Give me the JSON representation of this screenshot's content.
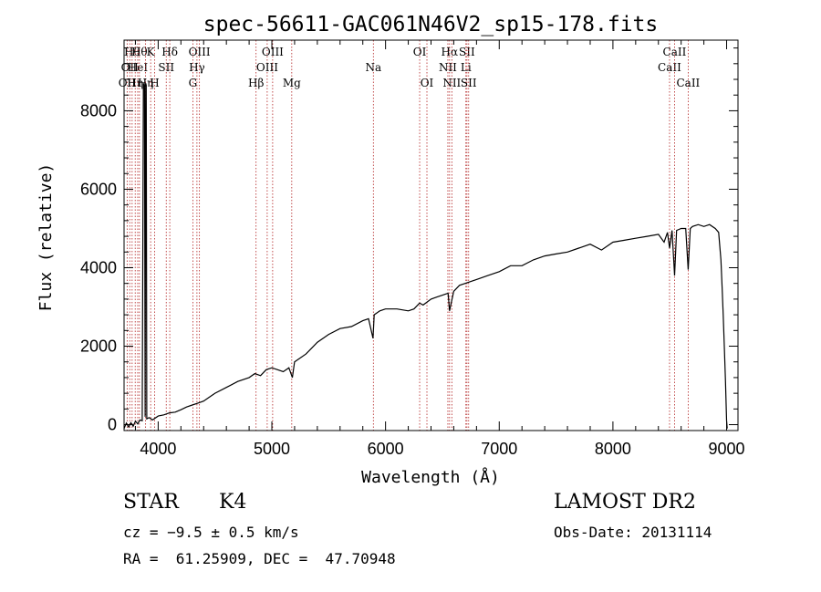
{
  "chart_data": {
    "type": "line",
    "title": "spec-56611-GAC061N46V2_sp15-178.fits",
    "xlabel": "Wavelength (Å)",
    "ylabel": "Flux (relative)",
    "xlim": [
      3700,
      9100
    ],
    "ylim": [
      -150,
      9800
    ],
    "x_ticks": [
      4000,
      5000,
      6000,
      7000,
      8000,
      9000
    ],
    "y_ticks": [
      0,
      2000,
      4000,
      6000,
      8000
    ],
    "x_minor_step": 200,
    "y_minor_step": 400,
    "grid": false,
    "series": [
      {
        "color": "#000000",
        "x": [
          3700,
          3720,
          3740,
          3760,
          3780,
          3800,
          3820,
          3840,
          3860,
          3870,
          3880,
          3885,
          3890,
          3895,
          3900,
          3920,
          3950,
          4000,
          4050,
          4100,
          4150,
          4200,
          4250,
          4300,
          4350,
          4400,
          4450,
          4500,
          4600,
          4700,
          4800,
          4850,
          4900,
          4950,
          5000,
          5050,
          5100,
          5150,
          5180,
          5200,
          5300,
          5400,
          5500,
          5600,
          5700,
          5800,
          5850,
          5890,
          5900,
          5950,
          6000,
          6100,
          6200,
          6250,
          6300,
          6330,
          6400,
          6450,
          6500,
          6550,
          6563,
          6600,
          6650,
          6700,
          6800,
          6900,
          7000,
          7100,
          7200,
          7300,
          7400,
          7500,
          7600,
          7700,
          7800,
          7900,
          8000,
          8100,
          8200,
          8300,
          8400,
          8450,
          8480,
          8498,
          8520,
          8542,
          8560,
          8600,
          8640,
          8662,
          8680,
          8700,
          8750,
          8800,
          8850,
          8900,
          8930,
          8950,
          8960,
          8970,
          8980,
          8990,
          9000,
          9005
        ],
        "y": [
          -100,
          40,
          -60,
          50,
          -40,
          90,
          20,
          120,
          100,
          8700,
          8600,
          200,
          8700,
          8650,
          150,
          180,
          120,
          220,
          250,
          300,
          320,
          380,
          450,
          500,
          550,
          600,
          700,
          800,
          950,
          1100,
          1200,
          1300,
          1250,
          1400,
          1450,
          1400,
          1350,
          1450,
          1200,
          1600,
          1800,
          2100,
          2300,
          2450,
          2500,
          2650,
          2700,
          2200,
          2800,
          2900,
          2950,
          2950,
          2900,
          2950,
          3100,
          3050,
          3200,
          3250,
          3300,
          3350,
          2900,
          3400,
          3550,
          3600,
          3700,
          3800,
          3900,
          4050,
          4050,
          4200,
          4300,
          4350,
          4400,
          4500,
          4600,
          4450,
          4650,
          4700,
          4750,
          4800,
          4850,
          4650,
          4900,
          4500,
          4950,
          3800,
          4950,
          5000,
          5000,
          3950,
          5000,
          5050,
          5100,
          5050,
          5100,
          5000,
          4900,
          4200,
          3500,
          2800,
          2000,
          1100,
          100,
          -100
        ]
      }
    ],
    "line_markers": [
      {
        "wavelength": 3727,
        "label": "OII",
        "row": 3
      },
      {
        "wavelength": 3750,
        "label": "OII",
        "row": 2
      },
      {
        "wavelength": 3771,
        "label": "Hθ",
        "row": 1
      },
      {
        "wavelength": 3798,
        "label": "Hη",
        "row": 3
      },
      {
        "wavelength": 3820,
        "label": "HeI",
        "row": 2
      },
      {
        "wavelength": 3835,
        "label": "Hθ",
        "row": 1
      },
      {
        "wavelength": 3889,
        "label": "Hη",
        "row": 3
      },
      {
        "wavelength": 3934,
        "label": "K",
        "row": 1
      },
      {
        "wavelength": 3969,
        "label": "H",
        "row": 3
      },
      {
        "wavelength": 4071,
        "label": "SII",
        "row": 2
      },
      {
        "wavelength": 4102,
        "label": "Hδ",
        "row": 1
      },
      {
        "wavelength": 4305,
        "label": "G",
        "row": 3
      },
      {
        "wavelength": 4341,
        "label": "Hγ",
        "row": 2
      },
      {
        "wavelength": 4363,
        "label": "OIII",
        "row": 1
      },
      {
        "wavelength": 4861,
        "label": "Hβ",
        "row": 3
      },
      {
        "wavelength": 4959,
        "label": "OIII",
        "row": 2
      },
      {
        "wavelength": 5007,
        "label": "OIII",
        "row": 1
      },
      {
        "wavelength": 5175,
        "label": "Mg",
        "row": 3
      },
      {
        "wavelength": 5893,
        "label": "Na",
        "row": 2
      },
      {
        "wavelength": 6300,
        "label": "OI",
        "row": 1
      },
      {
        "wavelength": 6364,
        "label": "OI",
        "row": 3
      },
      {
        "wavelength": 6548,
        "label": "NII",
        "row": 2
      },
      {
        "wavelength": 6563,
        "label": "Hα",
        "row": 1
      },
      {
        "wavelength": 6583,
        "label": "NII",
        "row": 3
      },
      {
        "wavelength": 6707,
        "label": "Li",
        "row": 2
      },
      {
        "wavelength": 6716,
        "label": "SII",
        "row": 1
      },
      {
        "wavelength": 6731,
        "label": "SII",
        "row": 3
      },
      {
        "wavelength": 8498,
        "label": "CaII",
        "row": 2
      },
      {
        "wavelength": 8542,
        "label": "CaII",
        "row": 1
      },
      {
        "wavelength": 8662,
        "label": "CaII",
        "row": 3
      }
    ]
  },
  "info": {
    "class": "STAR",
    "subclass": "K4",
    "survey": "LAMOST DR2",
    "cz": "cz = −9.5 ± 0.5 km/s",
    "obs_date": "Obs-Date: 20131114",
    "coords": "RA =  61.25909, DEC =  47.70948"
  }
}
